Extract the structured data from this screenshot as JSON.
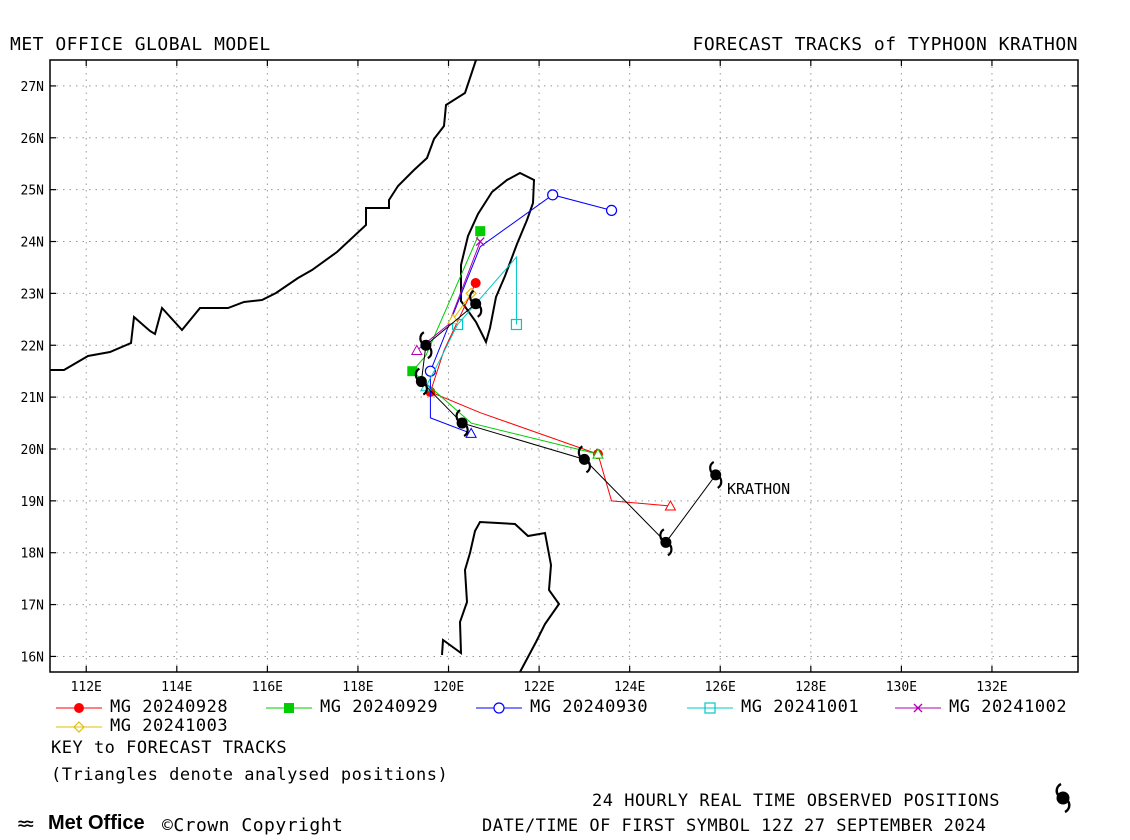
{
  "header": {
    "left": "MET OFFICE GLOBAL MODEL",
    "right": "FORECAST TRACKS of TYPHOON KRATHON"
  },
  "map": {
    "lon_range": [
      111.2,
      133.9
    ],
    "lat_range": [
      15.7,
      27.5
    ],
    "x_ticks": [
      "112E",
      "114E",
      "116E",
      "118E",
      "120E",
      "122E",
      "124E",
      "126E",
      "128E",
      "130E",
      "132E"
    ],
    "y_ticks": [
      "16N",
      "17N",
      "18N",
      "19N",
      "20N",
      "21N",
      "22N",
      "23N",
      "24N",
      "25N",
      "26N",
      "27N"
    ],
    "storm_label": "KRATHON",
    "observed_positions": [
      [
        125.9,
        19.5
      ],
      [
        124.8,
        18.2
      ],
      [
        123.0,
        19.8
      ],
      [
        120.3,
        20.5
      ],
      [
        119.4,
        21.3
      ],
      [
        119.5,
        22.0
      ],
      [
        120.6,
        22.8
      ]
    ],
    "tracks": [
      {
        "name": "MG 20240928",
        "color": "#ff0000",
        "marker": "filled-circle",
        "points": [
          [
            124.9,
            18.9
          ],
          [
            123.6,
            19.0
          ],
          [
            123.3,
            19.9
          ],
          [
            120.7,
            20.7
          ],
          [
            119.6,
            21.1
          ],
          [
            119.9,
            21.9
          ],
          [
            120.6,
            23.2
          ]
        ]
      },
      {
        "name": "MG 20240929",
        "color": "#00cc00",
        "marker": "filled-square",
        "points": [
          [
            123.3,
            19.9
          ],
          [
            120.5,
            20.5
          ],
          [
            119.2,
            21.5
          ],
          [
            119.5,
            21.8
          ],
          [
            120.7,
            24.2
          ]
        ]
      },
      {
        "name": "MG 20240930",
        "color": "#0000ff",
        "marker": "open-circle",
        "points": [
          [
            120.5,
            20.3
          ],
          [
            119.6,
            20.6
          ],
          [
            119.6,
            21.5
          ],
          [
            120.7,
            23.9
          ],
          [
            122.3,
            24.9
          ],
          [
            123.6,
            24.6
          ]
        ]
      },
      {
        "name": "MG 20241001",
        "color": "#00c8c8",
        "marker": "open-square",
        "points": [
          [
            119.5,
            21.2
          ],
          [
            119.8,
            21.7
          ],
          [
            120.2,
            22.4
          ],
          [
            121.5,
            23.7
          ],
          [
            121.5,
            22.4
          ]
        ]
      },
      {
        "name": "MG 20241002",
        "color": "#b000b0",
        "marker": "x",
        "points": [
          [
            119.3,
            21.9
          ],
          [
            120.0,
            22.4
          ],
          [
            120.7,
            24.0
          ]
        ]
      },
      {
        "name": "MG 20241003",
        "color": "#e0c000",
        "marker": "diamond",
        "points": [
          [
            120.1,
            22.5
          ],
          [
            120.5,
            23.0
          ]
        ]
      }
    ]
  },
  "legend": {
    "items": [
      {
        "label": "MG 20240928",
        "color": "#ff0000",
        "marker": "filled-circle"
      },
      {
        "label": "MG 20240929",
        "color": "#00cc00",
        "marker": "filled-square"
      },
      {
        "label": "MG 20240930",
        "color": "#0000ff",
        "marker": "open-circle"
      },
      {
        "label": "MG 20241001",
        "color": "#00c8c8",
        "marker": "open-square"
      },
      {
        "label": "MG 20241002",
        "color": "#b000b0",
        "marker": "x"
      },
      {
        "label": "MG 20241003",
        "color": "#e0c000",
        "marker": "diamond"
      }
    ],
    "key_title": "KEY to FORECAST TRACKS",
    "triangle_note": "(Triangles denote analysed positions)"
  },
  "footer": {
    "observed_note": "24 HOURLY REAL TIME OBSERVED POSITIONS",
    "first_symbol": "DATE/TIME OF FIRST SYMBOL 12Z 27 SEPTEMBER 2024",
    "logo": "Met Office",
    "copyright": "©Crown Copyright"
  }
}
